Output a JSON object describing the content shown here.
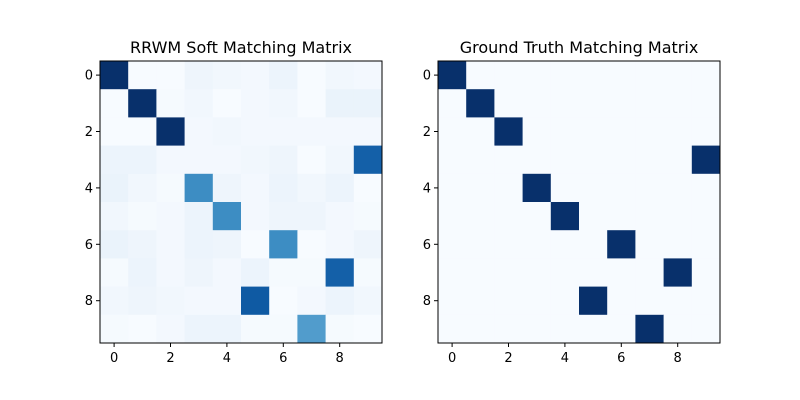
{
  "chart_data": [
    {
      "type": "heatmap",
      "title": "RRWM Soft Matching Matrix",
      "colormap": "Blues",
      "x_ticks": [
        "0",
        "2",
        "4",
        "6",
        "8"
      ],
      "y_ticks": [
        "0",
        "2",
        "4",
        "6",
        "8"
      ],
      "values": [
        [
          0.95,
          0.02,
          0.02,
          0.06,
          0.05,
          0.04,
          0.07,
          0.02,
          0.05,
          0.04
        ],
        [
          0.02,
          0.95,
          0.03,
          0.05,
          0.02,
          0.04,
          0.05,
          0.02,
          0.08,
          0.08
        ],
        [
          0.02,
          0.02,
          0.95,
          0.04,
          0.05,
          0.04,
          0.04,
          0.04,
          0.04,
          0.04
        ],
        [
          0.07,
          0.07,
          0.04,
          0.04,
          0.04,
          0.05,
          0.06,
          0.02,
          0.05,
          0.78
        ],
        [
          0.08,
          0.05,
          0.03,
          0.62,
          0.06,
          0.04,
          0.07,
          0.05,
          0.07,
          0.02
        ],
        [
          0.05,
          0.03,
          0.04,
          0.07,
          0.62,
          0.04,
          0.06,
          0.06,
          0.04,
          0.03
        ],
        [
          0.08,
          0.06,
          0.04,
          0.07,
          0.06,
          0.02,
          0.62,
          0.02,
          0.04,
          0.06
        ],
        [
          0.03,
          0.07,
          0.04,
          0.06,
          0.04,
          0.07,
          0.03,
          0.03,
          0.78,
          0.03
        ],
        [
          0.05,
          0.06,
          0.05,
          0.04,
          0.04,
          0.8,
          0.02,
          0.04,
          0.07,
          0.05
        ],
        [
          0.03,
          0.02,
          0.04,
          0.07,
          0.07,
          0.03,
          0.03,
          0.56,
          0.03,
          0.02
        ]
      ]
    },
    {
      "type": "heatmap",
      "title": "Ground Truth Matching Matrix",
      "colormap": "Blues",
      "x_ticks": [
        "0",
        "2",
        "4",
        "6",
        "8"
      ],
      "y_ticks": [
        "0",
        "2",
        "4",
        "6",
        "8"
      ],
      "values": [
        [
          1,
          0,
          0,
          0,
          0,
          0,
          0,
          0,
          0,
          0
        ],
        [
          0,
          1,
          0,
          0,
          0,
          0,
          0,
          0,
          0,
          0
        ],
        [
          0,
          0,
          1,
          0,
          0,
          0,
          0,
          0,
          0,
          0
        ],
        [
          0,
          0,
          0,
          0,
          0,
          0,
          0,
          0,
          0,
          1
        ],
        [
          0,
          0,
          0,
          1,
          0,
          0,
          0,
          0,
          0,
          0
        ],
        [
          0,
          0,
          0,
          0,
          1,
          0,
          0,
          0,
          0,
          0
        ],
        [
          0,
          0,
          0,
          0,
          0,
          0,
          1,
          0,
          0,
          0
        ],
        [
          0,
          0,
          0,
          0,
          0,
          0,
          0,
          0,
          1,
          0
        ],
        [
          0,
          0,
          0,
          0,
          0,
          1,
          0,
          0,
          0,
          0
        ],
        [
          0,
          0,
          0,
          0,
          0,
          0,
          0,
          1,
          0,
          0
        ]
      ]
    }
  ]
}
